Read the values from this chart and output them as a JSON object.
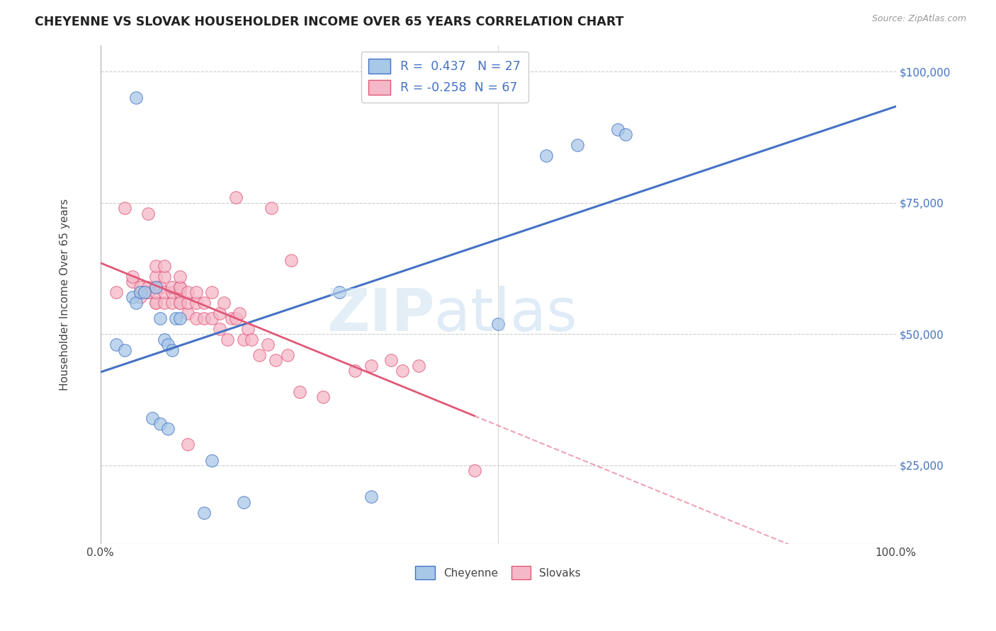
{
  "title": "CHEYENNE VS SLOVAK HOUSEHOLDER INCOME OVER 65 YEARS CORRELATION CHART",
  "source": "Source: ZipAtlas.com",
  "ylabel": "Householder Income Over 65 years",
  "cheyenne_label": "Cheyenne",
  "slovaks_label": "Slovaks",
  "cheyenne_R": 0.437,
  "cheyenne_N": 27,
  "slovaks_R": -0.258,
  "slovaks_N": 67,
  "cheyenne_color": "#a8c8e8",
  "slovaks_color": "#f5b8c8",
  "cheyenne_line_color": "#4472c4",
  "slovaks_line_color": "#e05878",
  "ytick_labels": [
    "$25,000",
    "$50,000",
    "$75,000",
    "$100,000"
  ],
  "ytick_values": [
    25000,
    50000,
    75000,
    100000
  ],
  "ylim": [
    10000,
    105000
  ],
  "xlim": [
    0.0,
    1.0
  ],
  "watermark_zip": "ZIP",
  "watermark_atlas": "atlas",
  "background_color": "#ffffff",
  "cheyenne_x": [
    0.045,
    0.02,
    0.03,
    0.04,
    0.045,
    0.05,
    0.055,
    0.07,
    0.075,
    0.08,
    0.085,
    0.09,
    0.095,
    0.1,
    0.065,
    0.075,
    0.085,
    0.13,
    0.18,
    0.3,
    0.34,
    0.5,
    0.56,
    0.6,
    0.65,
    0.66,
    0.14
  ],
  "cheyenne_y": [
    95000,
    48000,
    47000,
    57000,
    56000,
    58000,
    58000,
    59000,
    53000,
    49000,
    48000,
    47000,
    53000,
    53000,
    34000,
    33000,
    32000,
    16000,
    18000,
    58000,
    19000,
    52000,
    84000,
    86000,
    89000,
    88000,
    26000
  ],
  "slovaks_x": [
    0.02,
    0.03,
    0.04,
    0.04,
    0.05,
    0.05,
    0.05,
    0.06,
    0.06,
    0.06,
    0.06,
    0.07,
    0.07,
    0.07,
    0.07,
    0.07,
    0.07,
    0.075,
    0.08,
    0.08,
    0.08,
    0.08,
    0.09,
    0.09,
    0.09,
    0.1,
    0.1,
    0.1,
    0.1,
    0.1,
    0.1,
    0.11,
    0.11,
    0.11,
    0.12,
    0.12,
    0.12,
    0.13,
    0.13,
    0.14,
    0.14,
    0.15,
    0.15,
    0.155,
    0.16,
    0.165,
    0.17,
    0.175,
    0.18,
    0.185,
    0.19,
    0.2,
    0.21,
    0.215,
    0.22,
    0.235,
    0.24,
    0.25,
    0.28,
    0.32,
    0.34,
    0.365,
    0.38,
    0.4,
    0.47,
    0.17,
    0.11
  ],
  "slovaks_y": [
    58000,
    74000,
    60000,
    61000,
    58000,
    57000,
    59000,
    58000,
    58000,
    59000,
    73000,
    56000,
    59000,
    61000,
    63000,
    56000,
    58000,
    59000,
    56000,
    58000,
    61000,
    63000,
    56000,
    58000,
    59000,
    56000,
    58000,
    59000,
    56000,
    59000,
    61000,
    54000,
    56000,
    58000,
    53000,
    56000,
    58000,
    53000,
    56000,
    53000,
    58000,
    54000,
    51000,
    56000,
    49000,
    53000,
    53000,
    54000,
    49000,
    51000,
    49000,
    46000,
    48000,
    74000,
    45000,
    46000,
    64000,
    39000,
    38000,
    43000,
    44000,
    45000,
    43000,
    44000,
    24000,
    76000,
    29000
  ]
}
